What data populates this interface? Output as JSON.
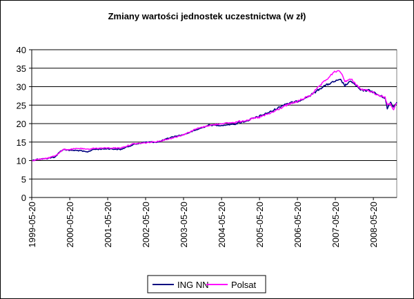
{
  "chart_data": {
    "type": "line",
    "title": "Zmiany wartości jednostek uczestnictwa (w zł)",
    "xlabel": "",
    "ylabel": "",
    "ylim": [
      0,
      40
    ],
    "yticks": [
      0,
      5,
      10,
      15,
      20,
      25,
      30,
      35,
      40
    ],
    "xlim": [
      "1999-05-20",
      "2008-12-31"
    ],
    "xtick_labels": [
      "1999-05-20",
      "2000-05-20",
      "2001-05-20",
      "2002-05-20",
      "2003-05-20",
      "2004-05-20",
      "2005-05-20",
      "2006-05-20",
      "2007-05-20",
      "2008-05-20"
    ],
    "grid": {
      "horizontal": true,
      "vertical": false
    },
    "legend_position": "bottom",
    "series": [
      {
        "name": "ING NN",
        "color": "#000080",
        "points": [
          [
            "1999-05-20",
            10.0
          ],
          [
            "1999-07-20",
            10.4
          ],
          [
            "1999-10-01",
            10.5
          ],
          [
            "2000-01-01",
            11.0
          ],
          [
            "2000-02-20",
            12.5
          ],
          [
            "2000-03-20",
            13.0
          ],
          [
            "2000-05-20",
            12.8
          ],
          [
            "2000-08-20",
            12.7
          ],
          [
            "2000-11-01",
            12.3
          ],
          [
            "2001-01-01",
            13.0
          ],
          [
            "2001-05-20",
            13.2
          ],
          [
            "2001-09-20",
            13.0
          ],
          [
            "2002-01-20",
            14.3
          ],
          [
            "2002-05-20",
            15.0
          ],
          [
            "2002-09-20",
            15.0
          ],
          [
            "2003-01-20",
            16.3
          ],
          [
            "2003-05-20",
            17.0
          ],
          [
            "2003-09-20",
            18.3
          ],
          [
            "2004-01-20",
            19.6
          ],
          [
            "2004-05-20",
            19.5
          ],
          [
            "2004-09-20",
            19.9
          ],
          [
            "2005-01-20",
            20.8
          ],
          [
            "2005-05-20",
            22.0
          ],
          [
            "2005-09-20",
            23.4
          ],
          [
            "2006-01-20",
            25.3
          ],
          [
            "2006-05-20",
            26.0
          ],
          [
            "2006-09-20",
            27.6
          ],
          [
            "2007-01-20",
            30.0
          ],
          [
            "2007-05-20",
            31.5
          ],
          [
            "2007-07-10",
            31.8
          ],
          [
            "2007-08-20",
            30.3
          ],
          [
            "2007-10-20",
            31.5
          ],
          [
            "2008-01-20",
            29.0
          ],
          [
            "2008-04-20",
            29.0
          ],
          [
            "2008-07-20",
            27.5
          ],
          [
            "2008-09-10",
            27.0
          ],
          [
            "2008-10-01",
            24.0
          ],
          [
            "2008-11-01",
            25.8
          ],
          [
            "2008-12-01",
            24.5
          ],
          [
            "2008-12-31",
            25.8
          ]
        ]
      },
      {
        "name": "Polsat",
        "color": "#FF00FF",
        "points": [
          [
            "1999-05-20",
            10.0
          ],
          [
            "1999-07-20",
            10.3
          ],
          [
            "1999-10-01",
            10.5
          ],
          [
            "2000-01-01",
            11.3
          ],
          [
            "2000-03-20",
            13.0
          ],
          [
            "2000-05-20",
            13.0
          ],
          [
            "2000-08-20",
            13.3
          ],
          [
            "2000-11-01",
            13.0
          ],
          [
            "2001-01-01",
            13.3
          ],
          [
            "2001-05-20",
            13.4
          ],
          [
            "2001-09-20",
            13.4
          ],
          [
            "2002-01-20",
            14.5
          ],
          [
            "2002-05-20",
            14.8
          ],
          [
            "2002-09-20",
            15.2
          ],
          [
            "2003-01-20",
            16.0
          ],
          [
            "2003-05-20",
            17.0
          ],
          [
            "2003-09-20",
            18.6
          ],
          [
            "2004-01-20",
            19.5
          ],
          [
            "2004-05-20",
            20.0
          ],
          [
            "2004-09-20",
            20.3
          ],
          [
            "2005-01-20",
            21.0
          ],
          [
            "2005-05-20",
            21.7
          ],
          [
            "2005-09-20",
            23.0
          ],
          [
            "2006-01-20",
            24.8
          ],
          [
            "2006-05-20",
            26.0
          ],
          [
            "2006-09-20",
            27.6
          ],
          [
            "2007-01-20",
            31.0
          ],
          [
            "2007-05-20",
            34.2
          ],
          [
            "2007-07-10",
            34.0
          ],
          [
            "2007-08-20",
            31.5
          ],
          [
            "2007-10-20",
            32.0
          ],
          [
            "2008-01-20",
            29.3
          ],
          [
            "2008-04-20",
            28.8
          ],
          [
            "2008-07-20",
            27.5
          ],
          [
            "2008-09-10",
            27.2
          ],
          [
            "2008-10-01",
            25.0
          ],
          [
            "2008-11-01",
            25.3
          ],
          [
            "2008-12-01",
            23.8
          ],
          [
            "2008-12-31",
            25.5
          ]
        ]
      }
    ]
  }
}
